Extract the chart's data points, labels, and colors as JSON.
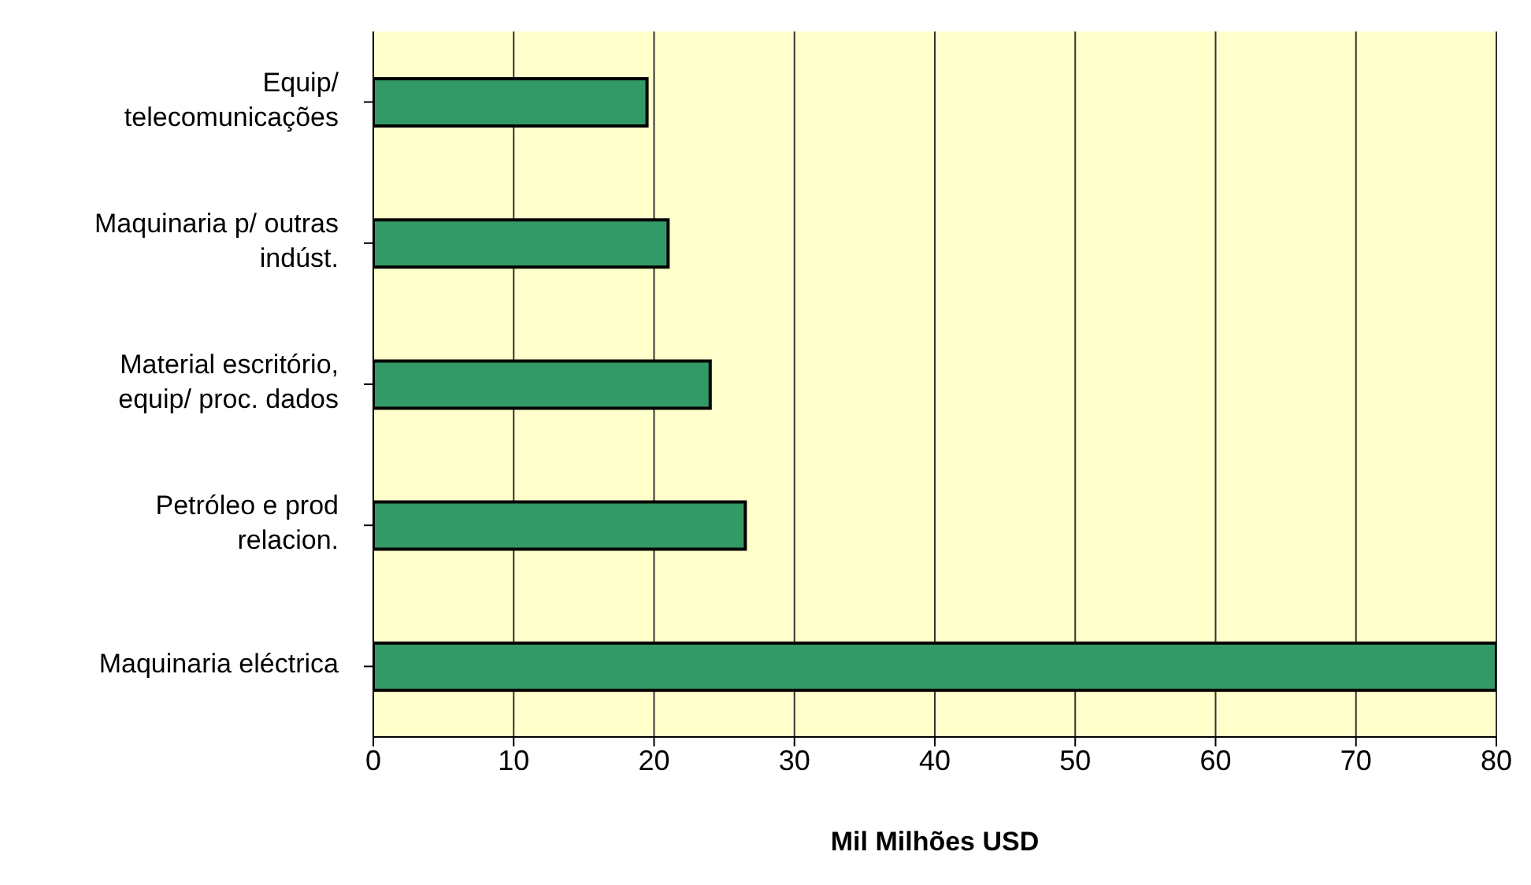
{
  "chart_data": {
    "type": "bar",
    "orientation": "horizontal",
    "xlabel": "Mil Milhões USD",
    "categories": [
      "Equip/ telecomunicações",
      "Maquinaria p/ outras indúst.",
      "Material escritório, equip/ proc. dados",
      "Petróleo e prod relacion.",
      "Maquinaria eléctrica"
    ],
    "values": [
      19.5,
      21,
      24,
      26.5,
      80
    ],
    "color": "#339966",
    "xlim": [
      0,
      80
    ],
    "xticks": [
      0,
      10,
      20,
      30,
      40,
      50,
      60,
      70,
      80
    ],
    "grid": "x",
    "legend": false
  }
}
